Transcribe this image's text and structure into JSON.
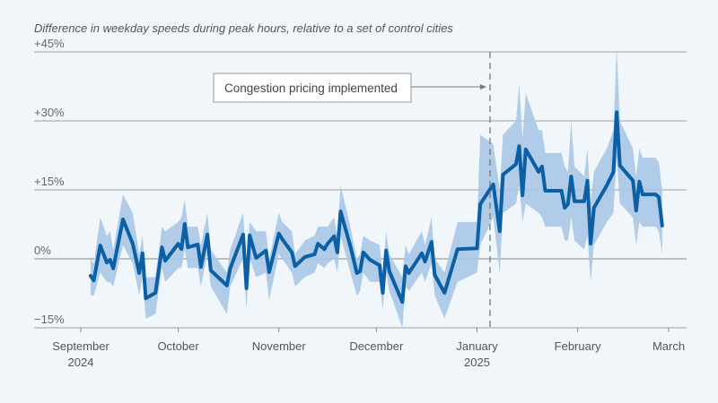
{
  "chart_data": {
    "type": "line",
    "title": "Difference in weekday speeds during peak hours, relative to a set of control cities",
    "xlabel": "",
    "ylabel": "",
    "ylim": [
      -15,
      45
    ],
    "yticks": [
      -15,
      0,
      15,
      30,
      45
    ],
    "ytick_labels": [
      "−15%",
      "0%",
      "+15%",
      "+30%",
      "+45%"
    ],
    "xlim": [
      "2024-09-01",
      "2025-03-01"
    ],
    "xticks": [
      {
        "date": "2024-09-01",
        "label": "September",
        "sublabel": "2024"
      },
      {
        "date": "2024-10-01",
        "label": "October",
        "sublabel": ""
      },
      {
        "date": "2024-11-01",
        "label": "November",
        "sublabel": ""
      },
      {
        "date": "2024-12-01",
        "label": "December",
        "sublabel": ""
      },
      {
        "date": "2025-01-01",
        "label": "January",
        "sublabel": "2025"
      },
      {
        "date": "2025-02-01",
        "label": "February",
        "sublabel": ""
      },
      {
        "date": "2025-03-01",
        "label": "March",
        "sublabel": ""
      }
    ],
    "grid": true,
    "annotation": {
      "text": "Congestion pricing implemented",
      "date": "2025-01-05"
    },
    "colors": {
      "line": "#0b5fa5",
      "band": "#a8c8e6",
      "grid": "#9a9a9a",
      "background": "#f1f6fb"
    },
    "series": [
      {
        "points": [
          [
            "2024-09-04",
            -3.7,
            -8,
            0
          ],
          [
            "2024-09-05",
            -4.7,
            -8,
            -1
          ],
          [
            "2024-09-07",
            2.9,
            -3,
            9
          ],
          [
            "2024-09-09",
            -0.8,
            -5,
            5
          ],
          [
            "2024-09-10",
            -0.2,
            -5,
            6
          ],
          [
            "2024-09-11",
            -2.1,
            -6,
            2
          ],
          [
            "2024-09-14",
            8.6,
            3,
            14
          ],
          [
            "2024-09-17",
            3.3,
            -1,
            10
          ],
          [
            "2024-09-19",
            -3.1,
            -8,
            1
          ],
          [
            "2024-09-20",
            1.2,
            -4,
            5
          ],
          [
            "2024-09-21",
            -8.6,
            -13,
            -4
          ],
          [
            "2024-09-24",
            -7.4,
            -12,
            -4
          ],
          [
            "2024-09-26",
            2.5,
            -2,
            7
          ],
          [
            "2024-09-27",
            -0.4,
            -5,
            6
          ],
          [
            "2024-10-01",
            3.3,
            -2,
            8
          ],
          [
            "2024-10-02",
            2.1,
            -2,
            9
          ],
          [
            "2024-10-03",
            7.6,
            2,
            13
          ],
          [
            "2024-10-04",
            2.5,
            -2,
            7
          ],
          [
            "2024-10-07",
            3.1,
            -2,
            7
          ],
          [
            "2024-10-08",
            -1.8,
            -6,
            3
          ],
          [
            "2024-10-10",
            5.3,
            1,
            10
          ],
          [
            "2024-10-11",
            -2.5,
            -6,
            2
          ],
          [
            "2024-10-16",
            -5.8,
            -12,
            -3
          ],
          [
            "2024-10-17",
            -2.1,
            -6,
            2
          ],
          [
            "2024-10-21",
            5.3,
            0,
            10
          ],
          [
            "2024-10-22",
            -6.4,
            -11,
            -2
          ],
          [
            "2024-10-23",
            5.1,
            0,
            8
          ],
          [
            "2024-10-25",
            0.2,
            -4,
            6
          ],
          [
            "2024-10-28",
            1.8,
            -3,
            6
          ],
          [
            "2024-10-29",
            -2.9,
            -9,
            0
          ],
          [
            "2024-11-01",
            5.5,
            1,
            10
          ],
          [
            "2024-11-02",
            4.3,
            0,
            8
          ],
          [
            "2024-11-05",
            1.4,
            -3,
            6
          ],
          [
            "2024-11-06",
            -1.6,
            -6,
            1
          ],
          [
            "2024-11-09",
            0.4,
            -4,
            4
          ],
          [
            "2024-11-12",
            1.0,
            -3,
            5
          ],
          [
            "2024-11-13",
            3.3,
            -1,
            7
          ],
          [
            "2024-11-15",
            2.1,
            -2,
            7
          ],
          [
            "2024-11-16",
            3.3,
            -1,
            7
          ],
          [
            "2024-11-18",
            4.9,
            0,
            9
          ],
          [
            "2024-11-19",
            1.4,
            -3,
            5
          ],
          [
            "2024-11-20",
            10.3,
            5,
            16
          ],
          [
            "2024-11-23",
            2.7,
            -3,
            7
          ],
          [
            "2024-11-25",
            -3.1,
            -8,
            0
          ],
          [
            "2024-11-26",
            -2.7,
            -7,
            1
          ],
          [
            "2024-11-27",
            1.4,
            -3,
            5
          ],
          [
            "2024-11-29",
            -0.2,
            -5,
            4
          ],
          [
            "2024-12-02",
            -1.4,
            -5,
            3
          ],
          [
            "2024-12-03",
            -7.4,
            -11,
            -3
          ],
          [
            "2024-12-04",
            1.8,
            -3,
            6
          ],
          [
            "2024-12-05",
            -2.7,
            -7,
            1
          ],
          [
            "2024-12-09",
            -9.4,
            -15,
            -4
          ],
          [
            "2024-12-10",
            -1.6,
            -6,
            3
          ],
          [
            "2024-12-11",
            -3.1,
            -7,
            1
          ],
          [
            "2024-12-15",
            1.2,
            -3,
            6
          ],
          [
            "2024-12-16",
            -0.6,
            -5,
            3
          ],
          [
            "2024-12-18",
            3.7,
            -1,
            9
          ],
          [
            "2024-12-19",
            -3.5,
            -8,
            0
          ],
          [
            "2024-12-22",
            -7.4,
            -13,
            -3
          ],
          [
            "2024-12-26",
            2.1,
            -5,
            8
          ],
          [
            "2025-01-01",
            2.3,
            -3,
            8
          ],
          [
            "2025-01-02",
            11.9,
            3,
            27
          ],
          [
            "2025-01-06",
            16.2,
            9,
            25
          ],
          [
            "2025-01-08",
            6.0,
            -3,
            15
          ],
          [
            "2025-01-09",
            18.3,
            10,
            27
          ],
          [
            "2025-01-13",
            20.6,
            12,
            30
          ],
          [
            "2025-01-14",
            24.5,
            16,
            38
          ],
          [
            "2025-01-15",
            13.8,
            8,
            26
          ],
          [
            "2025-01-16",
            23.8,
            12,
            36
          ],
          [
            "2025-01-20",
            18.9,
            10,
            28
          ],
          [
            "2025-01-21",
            20.1,
            9,
            28
          ],
          [
            "2025-01-22",
            14.8,
            7,
            23
          ],
          [
            "2025-01-27",
            14.8,
            7,
            23
          ],
          [
            "2025-01-28",
            11.1,
            4,
            20
          ],
          [
            "2025-01-29",
            11.9,
            4,
            19
          ],
          [
            "2025-01-30",
            17.9,
            9,
            30
          ],
          [
            "2025-01-31",
            12.5,
            4,
            20
          ],
          [
            "2025-02-03",
            12.5,
            2,
            18
          ],
          [
            "2025-02-04",
            17.0,
            5,
            24
          ],
          [
            "2025-02-05",
            3.3,
            -5,
            12
          ],
          [
            "2025-02-06",
            11.1,
            3,
            19
          ],
          [
            "2025-02-10",
            16.0,
            8,
            24
          ],
          [
            "2025-02-12",
            18.9,
            10,
            28
          ],
          [
            "2025-02-13",
            31.9,
            22,
            46
          ],
          [
            "2025-02-14",
            20.3,
            12,
            30
          ],
          [
            "2025-02-18",
            17.0,
            9,
            24
          ],
          [
            "2025-02-19",
            10.5,
            3,
            18
          ],
          [
            "2025-02-20",
            16.8,
            8,
            24
          ],
          [
            "2025-02-21",
            14.0,
            7,
            22
          ],
          [
            "2025-02-25",
            14.0,
            7,
            22
          ],
          [
            "2025-02-26",
            13.4,
            6,
            21
          ],
          [
            "2025-02-27",
            7.2,
            1,
            15
          ]
        ]
      }
    ]
  }
}
